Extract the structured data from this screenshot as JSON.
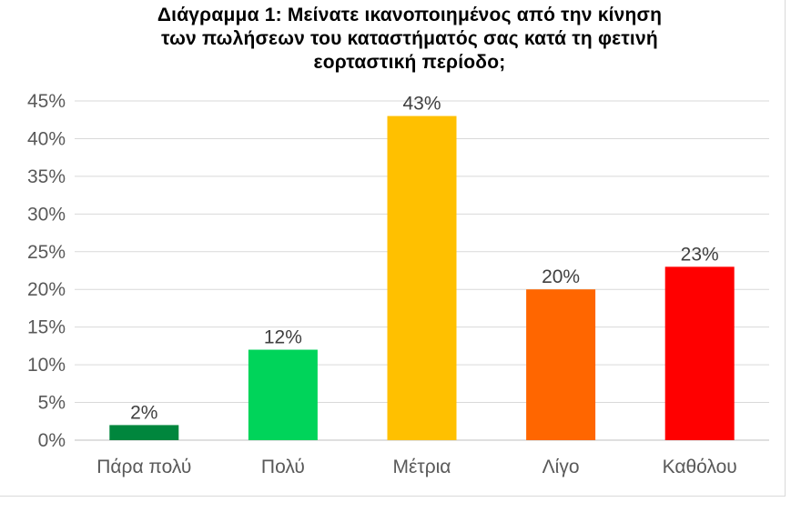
{
  "chart_data": {
    "type": "bar",
    "title_lines": [
      "Διάγραμμα 1: Μείνατε ικανοποιημένος από την κίνηση",
      "των πωλήσεων του καταστήματός σας κατά τη φετινή",
      "εορταστική περίοδο;"
    ],
    "categories": [
      "Πάρα πολύ",
      "Πολύ",
      "Μέτρια",
      "Λίγο",
      "Καθόλου"
    ],
    "values": [
      2,
      12,
      43,
      20,
      23
    ],
    "value_labels": [
      "2%",
      "12%",
      "43%",
      "20%",
      "23%"
    ],
    "colors": [
      "#00863d",
      "#00d45a",
      "#ffc000",
      "#ff6600",
      "#ff0000"
    ],
    "ylim": [
      0,
      45
    ],
    "yticks": [
      "0%",
      "5%",
      "10%",
      "15%",
      "20%",
      "25%",
      "30%",
      "35%",
      "40%",
      "45%"
    ],
    "grid": true,
    "legend": "none"
  }
}
